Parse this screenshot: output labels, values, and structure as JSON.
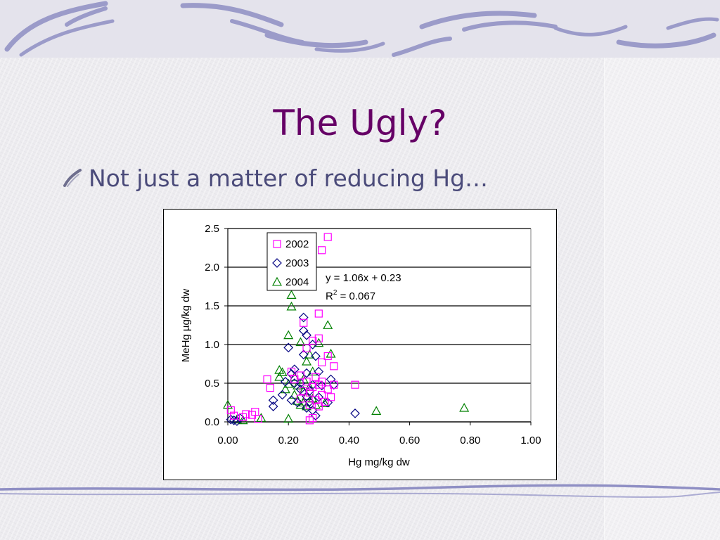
{
  "slide": {
    "title": "The Ugly?",
    "bullet": "Not just a matter of reducing Hg…",
    "bullet_icon": "brushstroke-bullet-icon",
    "accent_colors": {
      "title": "#660066",
      "bullet": "#4b4b7a",
      "decor": "#8f8fc4"
    }
  },
  "chart_data": {
    "type": "scatter",
    "xlabel": "Hg mg/kg dw",
    "ylabel": "MeHg µg/kg dw",
    "xlim": [
      0,
      1.0
    ],
    "ylim": [
      0,
      2.5
    ],
    "xticks": [
      "0.00",
      "0.20",
      "0.40",
      "0.60",
      "0.80",
      "1.00"
    ],
    "yticks": [
      "0.0",
      "0.5",
      "1.0",
      "1.5",
      "2.0",
      "2.5"
    ],
    "grid": "horizontal",
    "legend_position": "top-left",
    "trendline": {
      "equation": "y = 1.06x + 0.23",
      "r2_prefix": "R",
      "r2_sup": "2",
      "r2_value": " = 0.067"
    },
    "series": [
      {
        "name": "2002",
        "marker": "square",
        "color": "#ff00ff",
        "points": [
          [
            0.33,
            2.39
          ],
          [
            0.31,
            2.22
          ],
          [
            0.3,
            1.4
          ],
          [
            0.25,
            1.28
          ],
          [
            0.28,
            1.05
          ],
          [
            0.3,
            1.08
          ],
          [
            0.26,
            0.95
          ],
          [
            0.33,
            0.85
          ],
          [
            0.31,
            0.77
          ],
          [
            0.35,
            0.72
          ],
          [
            0.21,
            0.65
          ],
          [
            0.24,
            0.6
          ],
          [
            0.29,
            0.58
          ],
          [
            0.13,
            0.55
          ],
          [
            0.22,
            0.55
          ],
          [
            0.26,
            0.52
          ],
          [
            0.3,
            0.48
          ],
          [
            0.31,
            0.52
          ],
          [
            0.35,
            0.48
          ],
          [
            0.42,
            0.48
          ],
          [
            0.14,
            0.44
          ],
          [
            0.28,
            0.45
          ],
          [
            0.33,
            0.42
          ],
          [
            0.25,
            0.4
          ],
          [
            0.27,
            0.38
          ],
          [
            0.31,
            0.35
          ],
          [
            0.34,
            0.32
          ],
          [
            0.24,
            0.3
          ],
          [
            0.29,
            0.28
          ],
          [
            0.32,
            0.26
          ],
          [
            0.27,
            0.22
          ],
          [
            0.3,
            0.2
          ],
          [
            0.09,
            0.13
          ],
          [
            0.06,
            0.1
          ],
          [
            0.08,
            0.09
          ],
          [
            0.02,
            0.08
          ],
          [
            0.05,
            0.06
          ],
          [
            0.28,
            0.05
          ],
          [
            0.27,
            0.02
          ],
          [
            0.1,
            0.04
          ],
          [
            0.01,
            0.15
          ]
        ]
      },
      {
        "name": "2003",
        "marker": "diamond",
        "color": "#000080",
        "points": [
          [
            0.25,
            1.35
          ],
          [
            0.25,
            1.18
          ],
          [
            0.26,
            1.12
          ],
          [
            0.2,
            0.96
          ],
          [
            0.28,
            1.0
          ],
          [
            0.25,
            0.87
          ],
          [
            0.29,
            0.85
          ],
          [
            0.22,
            0.68
          ],
          [
            0.21,
            0.62
          ],
          [
            0.26,
            0.63
          ],
          [
            0.3,
            0.65
          ],
          [
            0.34,
            0.55
          ],
          [
            0.19,
            0.52
          ],
          [
            0.22,
            0.5
          ],
          [
            0.24,
            0.5
          ],
          [
            0.28,
            0.48
          ],
          [
            0.31,
            0.47
          ],
          [
            0.35,
            0.48
          ],
          [
            0.24,
            0.42
          ],
          [
            0.27,
            0.4
          ],
          [
            0.18,
            0.35
          ],
          [
            0.26,
            0.33
          ],
          [
            0.3,
            0.32
          ],
          [
            0.15,
            0.28
          ],
          [
            0.21,
            0.28
          ],
          [
            0.23,
            0.25
          ],
          [
            0.27,
            0.26
          ],
          [
            0.33,
            0.25
          ],
          [
            0.15,
            0.2
          ],
          [
            0.26,
            0.18
          ],
          [
            0.28,
            0.15
          ],
          [
            0.29,
            0.08
          ],
          [
            0.42,
            0.11
          ],
          [
            0.04,
            0.05
          ],
          [
            0.02,
            0.02
          ],
          [
            0.01,
            0.03
          ],
          [
            0.03,
            0.01
          ]
        ]
      },
      {
        "name": "2004",
        "marker": "triangle",
        "color": "#008000",
        "points": [
          [
            0.21,
            1.64
          ],
          [
            0.21,
            1.49
          ],
          [
            0.33,
            1.25
          ],
          [
            0.2,
            1.12
          ],
          [
            0.24,
            1.03
          ],
          [
            0.3,
            1.02
          ],
          [
            0.34,
            0.88
          ],
          [
            0.27,
            0.87
          ],
          [
            0.26,
            0.78
          ],
          [
            0.17,
            0.67
          ],
          [
            0.18,
            0.64
          ],
          [
            0.28,
            0.65
          ],
          [
            0.17,
            0.58
          ],
          [
            0.22,
            0.58
          ],
          [
            0.25,
            0.55
          ],
          [
            0.2,
            0.49
          ],
          [
            0.23,
            0.47
          ],
          [
            0.27,
            0.45
          ],
          [
            0.19,
            0.42
          ],
          [
            0.25,
            0.4
          ],
          [
            0.22,
            0.35
          ],
          [
            0.26,
            0.33
          ],
          [
            0.28,
            0.3
          ],
          [
            0.23,
            0.27
          ],
          [
            0.25,
            0.25
          ],
          [
            0.24,
            0.22
          ],
          [
            0.26,
            0.2
          ],
          [
            0.29,
            0.22
          ],
          [
            0.32,
            0.24
          ],
          [
            0.49,
            0.14
          ],
          [
            0.78,
            0.18
          ],
          [
            0.0,
            0.22
          ],
          [
            0.11,
            0.05
          ],
          [
            0.2,
            0.04
          ],
          [
            0.03,
            0.03
          ],
          [
            0.05,
            0.02
          ]
        ]
      }
    ]
  }
}
